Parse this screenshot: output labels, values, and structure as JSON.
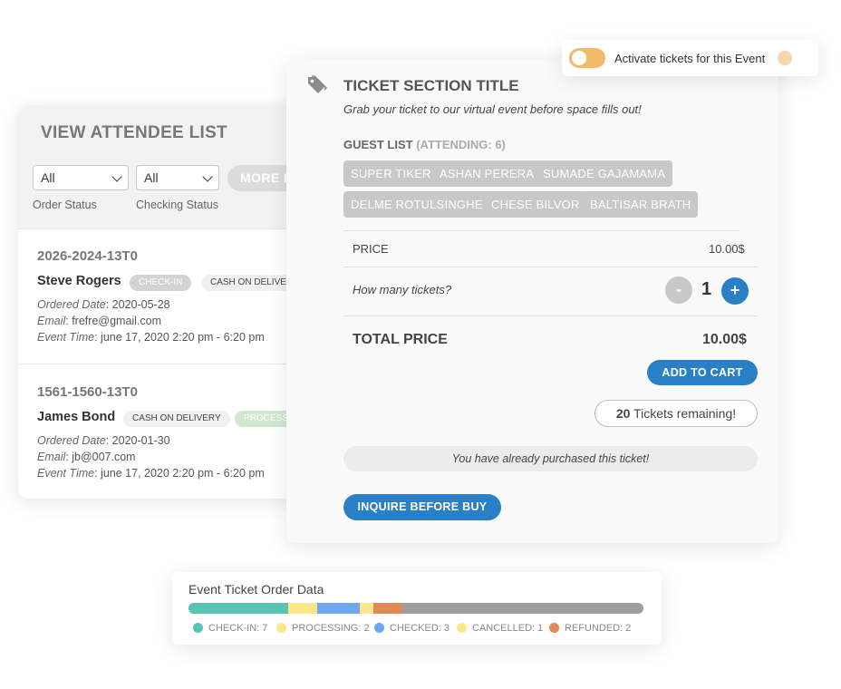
{
  "attendee_list": {
    "title": "VIEW ATTENDEE LIST",
    "filters": [
      {
        "value": "All",
        "label": "Order Status"
      },
      {
        "value": "All",
        "label": "Checking Status"
      }
    ],
    "more_button": "MORE F",
    "orders": [
      {
        "id": "2026-2024-13T0",
        "name": "Steve Rogers",
        "badges": [
          "CHECK-IN",
          "CASH ON DELIVER"
        ],
        "ordered_date_label": "Ordered Date",
        "ordered_date": ": 2020-05-28",
        "email_label": "Email",
        "email": ": frefre@gmail.com",
        "event_time_label": "Event Time",
        "event_time": ": june 17, 2020 2:20 pm - 6:20 pm"
      },
      {
        "id": "1561-1560-13T0",
        "name": "James Bond",
        "badges": [
          "CASH ON DELIVERY",
          "PROCESSI"
        ],
        "ordered_date_label": "Ordered Date",
        "ordered_date": ": 2020-01-30",
        "email_label": "Email",
        "email": ": jb@007.com",
        "event_time_label": "Event Time",
        "event_time": ": june 17, 2020 2:20 pm - 6:20 pm"
      }
    ]
  },
  "activate": {
    "label": "Activate tickets for this Event",
    "enabled": true,
    "toggle_color": "#f5b96a"
  },
  "ticket": {
    "icon": "tag-icon",
    "title": "TICKET SECTION TITLE",
    "subtitle": "Grab your ticket to our virtual event before space fills out!",
    "guest_list_label": "GUEST LIST",
    "attending": "(ATTENDING: 6)",
    "guests": [
      "SUPER TIKER",
      "ASHAN PERERA",
      "SUMADE GAJAMAMA",
      "DELME ROTULSINGHE",
      "CHESE BILVOR",
      "BALTISAR BRATH"
    ],
    "price_label": "PRICE",
    "price": "10.00$",
    "qty_label": "How many tickets?",
    "minus": "-",
    "qty": "1",
    "plus": "+",
    "total_label": "TOTAL PRICE",
    "total": "10.00$",
    "add_to_cart": "ADD TO CART",
    "remaining_count": "20",
    "remaining_text": " Tickets remaining!",
    "purchased_note": "You have already purchased this ticket!",
    "inquire": "INQUIRE BEFORE BUY",
    "accent": "#2a80c6"
  },
  "order_data": {
    "title": "Event Ticket Order Data",
    "segments": [
      {
        "label": "CHECK-IN: 7",
        "count": 7,
        "color": "#5bc3b4"
      },
      {
        "label": "PROCESSING: 2",
        "count": 2,
        "color": "#fde68a"
      },
      {
        "label": "CHECKED: 3",
        "count": 3,
        "color": "#6fa8f0"
      },
      {
        "label": "CANCELLED: 1",
        "count": 1,
        "color": "#fde68a"
      },
      {
        "label": "REFUNDED: 2",
        "count": 2,
        "color": "#e08a5a"
      }
    ],
    "bar_fill_fraction": 0.47,
    "remainder_color": "#9e9e9e"
  }
}
